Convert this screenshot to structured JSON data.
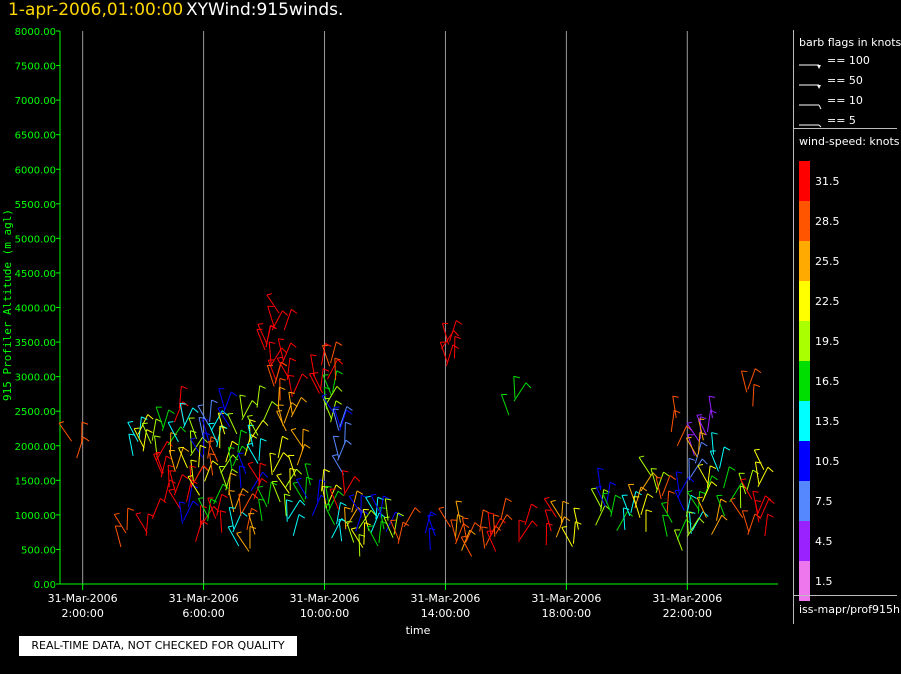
{
  "header": {
    "date_text": "1-apr-2006,01:00:00",
    "product_text": "XYWind:915winds."
  },
  "qc_note": "REAL-TIME DATA, NOT CHECKED FOR QUALITY",
  "legend": {
    "barb_title": "barb flags in knots",
    "barbs": [
      {
        "label": "== 100",
        "value": 100
      },
      {
        "label": "== 50",
        "value": 50
      },
      {
        "label": "== 10",
        "value": 10
      },
      {
        "label": "== 5",
        "value": 5
      }
    ],
    "speed_title": "wind-speed: knots",
    "colorscale": [
      {
        "label": "31.5",
        "color": "#ff0000"
      },
      {
        "label": "28.5",
        "color": "#ff5500"
      },
      {
        "label": "25.5",
        "color": "#ffaa00"
      },
      {
        "label": "22.5",
        "color": "#ffff00"
      },
      {
        "label": "19.5",
        "color": "#aaff00"
      },
      {
        "label": "16.5",
        "color": "#00dd00"
      },
      {
        "label": "13.5",
        "color": "#00ffff"
      },
      {
        "label": "10.5",
        "color": "#0000ff"
      },
      {
        "label": "7.5",
        "color": "#5588ff"
      },
      {
        "label": "4.5",
        "color": "#9922ff"
      },
      {
        "label": "1.5",
        "color": "#ee77ee"
      }
    ],
    "source": "iss-mapr/prof915h"
  },
  "chart_data": {
    "type": "scatter",
    "xlabel": "time",
    "ylabel": "915 Profiler Altitude (m agl)",
    "xlim": [
      1.25,
      25.0
    ],
    "ylim": [
      0,
      8000
    ],
    "x_ticks": [
      {
        "x": 2,
        "date": "31-Mar-2006",
        "time": "2:00:00"
      },
      {
        "x": 6,
        "date": "31-Mar-2006",
        "time": "6:00:00"
      },
      {
        "x": 10,
        "date": "31-Mar-2006",
        "time": "10:00:00"
      },
      {
        "x": 14,
        "date": "31-Mar-2006",
        "time": "14:00:00"
      },
      {
        "x": 18,
        "date": "31-Mar-2006",
        "time": "18:00:00"
      },
      {
        "x": 22,
        "date": "31-Mar-2006",
        "time": "22:00:00"
      }
    ],
    "y_ticks": [
      "0.00",
      "500.00",
      "1000.00",
      "1500.00",
      "2000.00",
      "2500.00",
      "3000.00",
      "3500.00",
      "4000.00",
      "4500.00",
      "5000.00",
      "5500.00",
      "6000.00",
      "6500.00",
      "7000.00",
      "7500.00",
      "8000.00"
    ],
    "vertical_gridlines": true,
    "series": [
      {
        "x": 1.8,
        "y": 1850,
        "speed": 28
      },
      {
        "x": 3.4,
        "y": 750,
        "speed": 28
      },
      {
        "x": 4.2,
        "y": 900,
        "speed": 32
      },
      {
        "x": 3.7,
        "y": 2000,
        "speed": 13
      },
      {
        "x": 4.0,
        "y": 2050,
        "speed": 22
      },
      {
        "x": 4.4,
        "y": 1900,
        "speed": 19
      },
      {
        "x": 4.5,
        "y": 1600,
        "speed": 31
      },
      {
        "x": 4.7,
        "y": 1400,
        "speed": 31
      },
      {
        "x": 4.8,
        "y": 2200,
        "speed": 16
      },
      {
        "x": 5.0,
        "y": 1800,
        "speed": 25
      },
      {
        "x": 5.1,
        "y": 1200,
        "speed": 31
      },
      {
        "x": 5.2,
        "y": 2400,
        "speed": 31
      },
      {
        "x": 5.3,
        "y": 2100,
        "speed": 13
      },
      {
        "x": 5.4,
        "y": 900,
        "speed": 10
      },
      {
        "x": 5.5,
        "y": 1650,
        "speed": 22
      },
      {
        "x": 5.6,
        "y": 1350,
        "speed": 31
      },
      {
        "x": 5.7,
        "y": 2000,
        "speed": 19
      },
      {
        "x": 5.8,
        "y": 700,
        "speed": 31
      },
      {
        "x": 6.0,
        "y": 1900,
        "speed": 10
      },
      {
        "x": 6.0,
        "y": 1500,
        "speed": 22
      },
      {
        "x": 6.1,
        "y": 2300,
        "speed": 7
      },
      {
        "x": 6.2,
        "y": 1100,
        "speed": 16
      },
      {
        "x": 6.3,
        "y": 1700,
        "speed": 28
      },
      {
        "x": 6.4,
        "y": 2100,
        "speed": 13
      },
      {
        "x": 6.5,
        "y": 800,
        "speed": 31
      },
      {
        "x": 6.6,
        "y": 1400,
        "speed": 19
      },
      {
        "x": 6.7,
        "y": 1950,
        "speed": 22
      },
      {
        "x": 6.8,
        "y": 2450,
        "speed": 10
      },
      {
        "x": 6.9,
        "y": 1200,
        "speed": 25
      },
      {
        "x": 7.0,
        "y": 650,
        "speed": 13
      },
      {
        "x": 7.1,
        "y": 1750,
        "speed": 16
      },
      {
        "x": 7.2,
        "y": 2200,
        "speed": 19
      },
      {
        "x": 7.3,
        "y": 1000,
        "speed": 28
      },
      {
        "x": 7.4,
        "y": 1550,
        "speed": 10
      },
      {
        "x": 7.5,
        "y": 2000,
        "speed": 22
      },
      {
        "x": 7.6,
        "y": 600,
        "speed": 25
      },
      {
        "x": 7.7,
        "y": 1300,
        "speed": 31
      },
      {
        "x": 7.8,
        "y": 1800,
        "speed": 13
      },
      {
        "x": 7.9,
        "y": 2350,
        "speed": 19
      },
      {
        "x": 8.0,
        "y": 1100,
        "speed": 16
      },
      {
        "x": 8.1,
        "y": 3600,
        "speed": 31
      },
      {
        "x": 8.2,
        "y": 3300,
        "speed": 31
      },
      {
        "x": 8.3,
        "y": 3000,
        "speed": 31
      },
      {
        "x": 8.4,
        "y": 2700,
        "speed": 28
      },
      {
        "x": 8.5,
        "y": 3700,
        "speed": 31
      },
      {
        "x": 8.6,
        "y": 2500,
        "speed": 25
      },
      {
        "x": 8.7,
        "y": 3150,
        "speed": 31
      },
      {
        "x": 8.8,
        "y": 2850,
        "speed": 31
      },
      {
        "x": 8.9,
        "y": 2300,
        "speed": 25
      },
      {
        "x": 8.4,
        "y": 1650,
        "speed": 22
      },
      {
        "x": 8.6,
        "y": 1200,
        "speed": 19
      },
      {
        "x": 8.8,
        "y": 900,
        "speed": 13
      },
      {
        "x": 9.0,
        "y": 1500,
        "speed": 22
      },
      {
        "x": 9.2,
        "y": 1850,
        "speed": 25
      },
      {
        "x": 9.4,
        "y": 1300,
        "speed": 16
      },
      {
        "x": 9.6,
        "y": 1050,
        "speed": 10
      },
      {
        "x": 9.8,
        "y": 2800,
        "speed": 31
      },
      {
        "x": 10.0,
        "y": 2950,
        "speed": 31
      },
      {
        "x": 10.1,
        "y": 2700,
        "speed": 16
      },
      {
        "x": 10.2,
        "y": 2500,
        "speed": 19
      },
      {
        "x": 10.3,
        "y": 3050,
        "speed": 28
      },
      {
        "x": 10.4,
        "y": 2300,
        "speed": 10
      },
      {
        "x": 10.5,
        "y": 2050,
        "speed": 7
      },
      {
        "x": 10.6,
        "y": 1800,
        "speed": 7
      },
      {
        "x": 10.0,
        "y": 1300,
        "speed": 22
      },
      {
        "x": 10.2,
        "y": 1000,
        "speed": 16
      },
      {
        "x": 10.4,
        "y": 750,
        "speed": 13
      },
      {
        "x": 10.6,
        "y": 1150,
        "speed": 31
      },
      {
        "x": 10.8,
        "y": 850,
        "speed": 25
      },
      {
        "x": 11.0,
        "y": 600,
        "speed": 19
      },
      {
        "x": 11.2,
        "y": 950,
        "speed": 10
      },
      {
        "x": 11.4,
        "y": 700,
        "speed": 22
      },
      {
        "x": 11.6,
        "y": 850,
        "speed": 13
      },
      {
        "x": 11.8,
        "y": 650,
        "speed": 16
      },
      {
        "x": 12.0,
        "y": 800,
        "speed": 10
      },
      {
        "x": 12.2,
        "y": 700,
        "speed": 19
      },
      {
        "x": 12.5,
        "y": 800,
        "speed": 28
      },
      {
        "x": 13.5,
        "y": 650,
        "speed": 10
      },
      {
        "x": 14.0,
        "y": 3300,
        "speed": 31
      },
      {
        "x": 14.2,
        "y": 3350,
        "speed": 31
      },
      {
        "x": 14.2,
        "y": 650,
        "speed": 28
      },
      {
        "x": 14.5,
        "y": 700,
        "speed": 25
      },
      {
        "x": 14.8,
        "y": 600,
        "speed": 28
      },
      {
        "x": 15.2,
        "y": 700,
        "speed": 28
      },
      {
        "x": 15.5,
        "y": 600,
        "speed": 31
      },
      {
        "x": 15.8,
        "y": 800,
        "speed": 28
      },
      {
        "x": 16.2,
        "y": 2500,
        "speed": 16
      },
      {
        "x": 16.5,
        "y": 650,
        "speed": 31
      },
      {
        "x": 17.5,
        "y": 750,
        "speed": 31
      },
      {
        "x": 17.8,
        "y": 850,
        "speed": 25
      },
      {
        "x": 18.3,
        "y": 700,
        "speed": 22
      },
      {
        "x": 19.0,
        "y": 950,
        "speed": 19
      },
      {
        "x": 19.3,
        "y": 1200,
        "speed": 10
      },
      {
        "x": 19.6,
        "y": 800,
        "speed": 16
      },
      {
        "x": 20.0,
        "y": 1000,
        "speed": 13
      },
      {
        "x": 20.3,
        "y": 1300,
        "speed": 25
      },
      {
        "x": 20.6,
        "y": 900,
        "speed": 22
      },
      {
        "x": 20.9,
        "y": 1450,
        "speed": 19
      },
      {
        "x": 21.2,
        "y": 1100,
        "speed": 28
      },
      {
        "x": 21.5,
        "y": 700,
        "speed": 16
      },
      {
        "x": 21.6,
        "y": 2200,
        "speed": 28
      },
      {
        "x": 21.8,
        "y": 1250,
        "speed": 10
      },
      {
        "x": 22.0,
        "y": 900,
        "speed": 13
      },
      {
        "x": 22.0,
        "y": 600,
        "speed": 19
      },
      {
        "x": 22.2,
        "y": 1600,
        "speed": 7
      },
      {
        "x": 22.3,
        "y": 1900,
        "speed": 4
      },
      {
        "x": 22.4,
        "y": 1050,
        "speed": 16
      },
      {
        "x": 22.5,
        "y": 2050,
        "speed": 25
      },
      {
        "x": 22.6,
        "y": 1350,
        "speed": 22
      },
      {
        "x": 22.7,
        "y": 2300,
        "speed": 4
      },
      {
        "x": 22.8,
        "y": 800,
        "speed": 25
      },
      {
        "x": 23.0,
        "y": 1700,
        "speed": 13
      },
      {
        "x": 23.3,
        "y": 1200,
        "speed": 16
      },
      {
        "x": 23.8,
        "y": 1300,
        "speed": 19
      },
      {
        "x": 24.0,
        "y": 900,
        "speed": 28
      },
      {
        "x": 24.1,
        "y": 2700,
        "speed": 28
      },
      {
        "x": 24.2,
        "y": 1100,
        "speed": 31
      },
      {
        "x": 24.4,
        "y": 750,
        "speed": 31
      },
      {
        "x": 24.5,
        "y": 1450,
        "speed": 22
      }
    ]
  }
}
